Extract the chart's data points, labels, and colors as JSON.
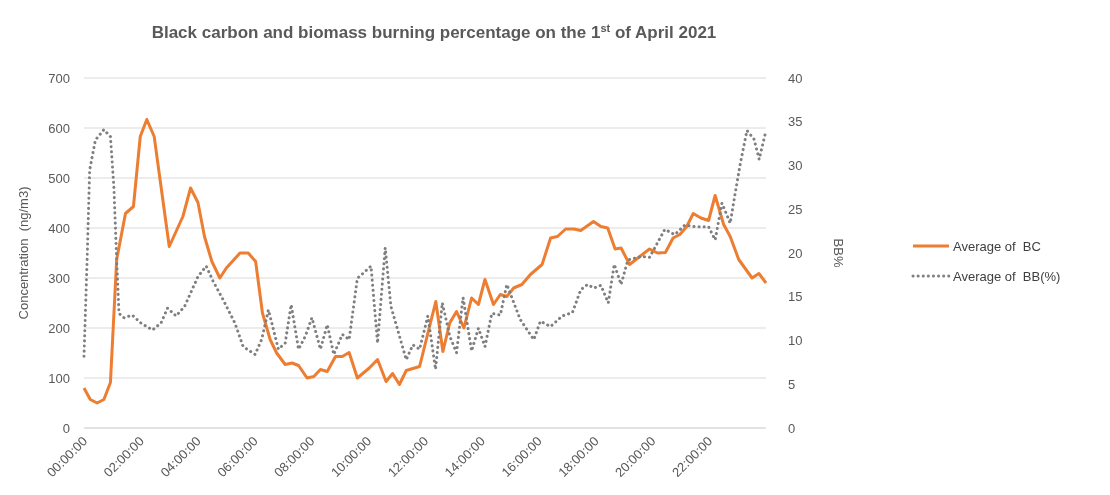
{
  "chart_data": {
    "type": "line",
    "title": "Black carbon and biomass burning percentage on the 1$^{st}$ of April 2021",
    "ylabel": "Concentration  (ng/m3)",
    "y2label": "BB%",
    "xlim": [
      0,
      24
    ],
    "xticks": [
      {
        "value": 0,
        "label": "00:00:00"
      },
      {
        "value": 2,
        "label": "02:00:00"
      },
      {
        "value": 4,
        "label": "04:00:00"
      },
      {
        "value": 6,
        "label": "06:00:00"
      },
      {
        "value": 8,
        "label": "08:00:00"
      },
      {
        "value": 10,
        "label": "10:00:00"
      },
      {
        "value": 12,
        "label": "12:00:00"
      },
      {
        "value": 14,
        "label": "14:00:00"
      },
      {
        "value": 16,
        "label": "16:00:00"
      },
      {
        "value": 18,
        "label": "18:00:00"
      },
      {
        "value": 20,
        "label": "20:00:00"
      },
      {
        "value": 22,
        "label": "22:00:00"
      }
    ],
    "ylim": [
      0,
      700
    ],
    "yticks": [
      0,
      100,
      200,
      300,
      400,
      500,
      600,
      700
    ],
    "y2lim": [
      0,
      40
    ],
    "y2ticks": [
      0,
      5,
      10,
      15,
      20,
      25,
      30,
      35,
      40
    ],
    "grid": "y",
    "legend": "right",
    "series": [
      {
        "name": "Average of  BC",
        "color": "#ed7d31",
        "line_style": "solid",
        "x": [
          0,
          0.22,
          0.46,
          0.7,
          0.93,
          1.15,
          1.46,
          1.74,
          1.98,
          2.21,
          2.47,
          2.71,
          3.0,
          3.48,
          3.75,
          4.01,
          4.24,
          4.5,
          4.78,
          5.01,
          5.49,
          5.78,
          6.04,
          6.28,
          6.55,
          6.78,
          7.08,
          7.32,
          7.55,
          7.85,
          8.09,
          8.32,
          8.56,
          8.85,
          9.09,
          9.33,
          9.62,
          10.04,
          10.33,
          10.63,
          10.86,
          11.1,
          11.34,
          11.81,
          12.38,
          12.63,
          12.87,
          13.11,
          13.37,
          13.64,
          13.88,
          14.11,
          14.41,
          14.65,
          14.88,
          15.12,
          15.41,
          15.71,
          16.12,
          16.42,
          16.66,
          16.95,
          17.24,
          17.48,
          17.93,
          18.19,
          18.43,
          18.69,
          18.9,
          19.2,
          19.49,
          19.9,
          20.18,
          20.46,
          20.73,
          20.97,
          21.21,
          21.44,
          21.71,
          21.98,
          22.21,
          22.51,
          22.74,
          23.04,
          23.51,
          23.75,
          24.0
        ],
        "values": [
          80,
          57,
          50,
          57,
          91,
          337,
          429,
          443,
          583,
          617,
          583,
          483,
          363,
          423,
          480,
          451,
          383,
          333,
          300,
          320,
          350,
          350,
          333,
          230,
          177,
          150,
          127,
          130,
          125,
          100,
          103,
          117,
          113,
          143,
          143,
          151,
          100,
          120,
          137,
          93,
          109,
          87,
          115,
          123,
          253,
          153,
          210,
          233,
          200,
          260,
          247,
          297,
          247,
          267,
          263,
          280,
          287,
          307,
          327,
          380,
          383,
          398,
          398,
          395,
          413,
          403,
          400,
          358,
          360,
          327,
          340,
          358,
          350,
          351,
          380,
          387,
          403,
          429,
          420,
          415,
          465,
          407,
          383,
          337,
          300,
          309,
          290
        ]
      },
      {
        "name": "Average of  BB(%)",
        "color": "#7f7f7f",
        "line_style": "dotted",
        "axis": "y2",
        "x": [
          0,
          0.11,
          0.2,
          0.4,
          0.7,
          0.93,
          1.05,
          1.15,
          1.23,
          1.41,
          1.7,
          2.0,
          2.41,
          2.71,
          2.94,
          3.24,
          3.54,
          4.01,
          4.3,
          4.54,
          4.89,
          5.31,
          5.6,
          6.02,
          6.25,
          6.49,
          6.67,
          6.84,
          7.08,
          7.29,
          7.55,
          7.79,
          8.02,
          8.32,
          8.56,
          8.79,
          9.09,
          9.33,
          9.62,
          10.1,
          10.33,
          10.6,
          10.8,
          11.34,
          11.57,
          11.81,
          12.1,
          12.37,
          12.61,
          12.87,
          13.11,
          13.34,
          13.64,
          13.88,
          14.11,
          14.35,
          14.65,
          14.88,
          15.35,
          15.83,
          16.06,
          16.42,
          16.83,
          17.19,
          17.48,
          17.72,
          17.95,
          18.19,
          18.45,
          18.66,
          18.9,
          19.14,
          19.61,
          19.9,
          20.44,
          20.79,
          21.15,
          21.5,
          21.98,
          22.21,
          22.45,
          22.74,
          22.92,
          23.1,
          23.33,
          23.58,
          23.76,
          24.0
        ],
        "values": [
          8.2,
          19.2,
          29.5,
          32.9,
          34.1,
          33.3,
          27.6,
          19.2,
          13.1,
          12.6,
          12.9,
          12.0,
          11.2,
          12.0,
          13.7,
          12.8,
          13.9,
          17.3,
          18.5,
          16.8,
          14.7,
          12.0,
          9.3,
          8.4,
          10.1,
          13.5,
          11.2,
          9.0,
          9.7,
          14.1,
          9.0,
          10.5,
          12.6,
          9.0,
          11.8,
          8.4,
          10.7,
          10.1,
          17.1,
          18.5,
          9.7,
          20.6,
          13.9,
          7.8,
          9.5,
          9.0,
          12.8,
          6.7,
          14.3,
          10.5,
          8.6,
          14.9,
          8.8,
          11.4,
          9.3,
          13.1,
          12.9,
          16.4,
          12.4,
          10.1,
          12.2,
          11.6,
          12.8,
          13.2,
          15.8,
          16.4,
          16.0,
          16.3,
          14.3,
          18.7,
          16.4,
          19.2,
          19.6,
          19.5,
          22.7,
          22.1,
          23.2,
          23.0,
          23.0,
          21.5,
          25.7,
          23.4,
          26.9,
          30.3,
          34.0,
          33.0,
          30.7,
          34.0
        ]
      }
    ]
  }
}
